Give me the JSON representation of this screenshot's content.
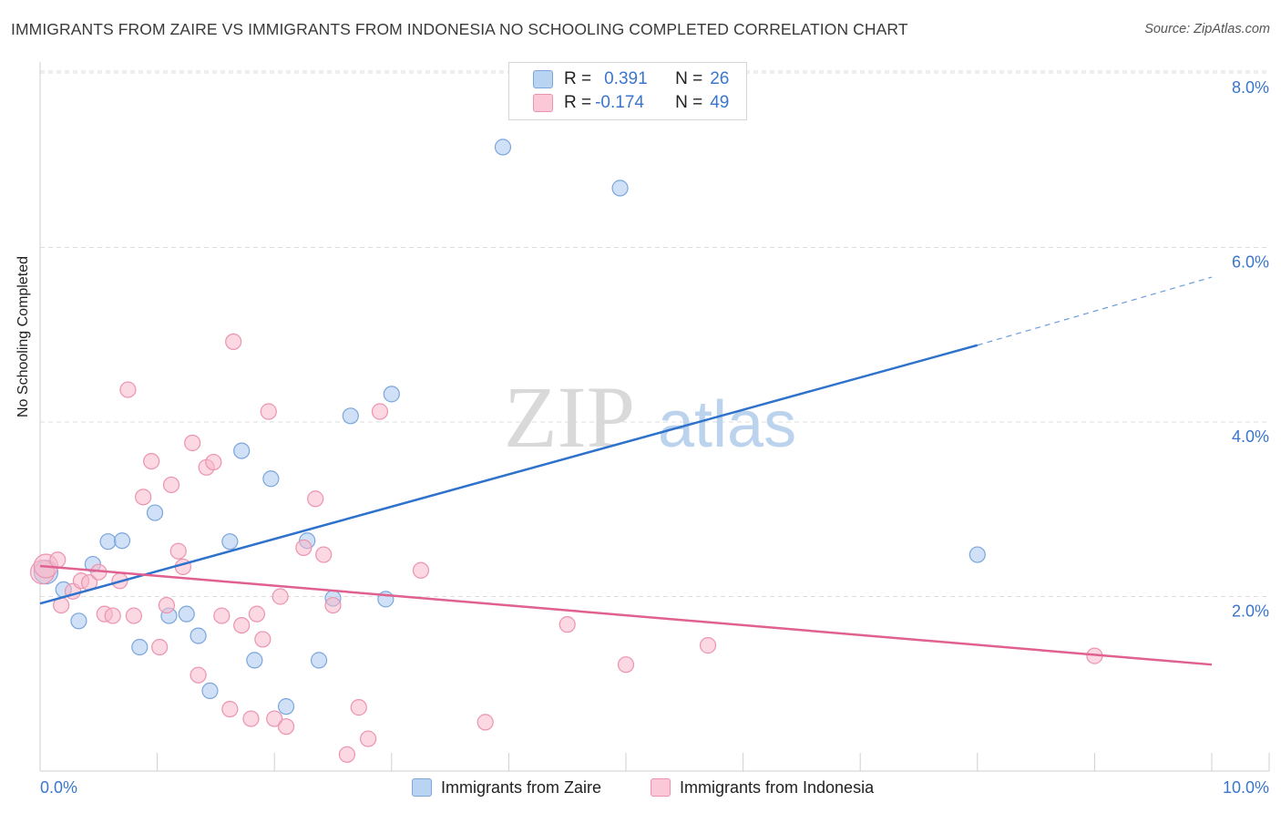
{
  "header": {
    "title": "IMMIGRANTS FROM ZAIRE VS IMMIGRANTS FROM INDONESIA NO SCHOOLING COMPLETED CORRELATION CHART",
    "source": "Source: ZipAtlas.com"
  },
  "legend": {
    "r_label": "R =",
    "n_label": "N =",
    "zaire": {
      "r": "0.391",
      "n": "26"
    },
    "indonesia": {
      "r": "-0.174",
      "n": "49"
    }
  },
  "watermark": {
    "zip": "ZIP",
    "atlas": "atlas"
  },
  "colors": {
    "zaire_fill": "#a9c8f0",
    "zaire_stroke": "#7aa6dc",
    "zaire_line": "#2e72cc",
    "indonesia_fill": "#f7b8cb",
    "indonesia_stroke": "#ec93b0",
    "indonesia_line": "#e0608f",
    "axis_text": "#3a76cc",
    "grid": "#dddddd"
  },
  "chart_data": {
    "type": "scatter",
    "title": "IMMIGRANTS FROM ZAIRE VS IMMIGRANTS FROM INDONESIA NO SCHOOLING COMPLETED CORRELATION CHART",
    "xlabel": "",
    "ylabel": "No Schooling Completed",
    "xlim": [
      0,
      10.5
    ],
    "ylim": [
      0,
      8.3
    ],
    "x_tick_labels": [
      "0.0%",
      "10.0%"
    ],
    "y_ticks": [
      2,
      4,
      6,
      8
    ],
    "y_tick_labels": [
      "2.0%",
      "4.0%",
      "6.0%",
      "8.0%"
    ],
    "series": [
      {
        "name": "Immigrants from Zaire",
        "points": [
          [
            0.05,
            2.28
          ],
          [
            0.2,
            2.08
          ],
          [
            0.33,
            1.72
          ],
          [
            0.45,
            2.37
          ],
          [
            0.58,
            2.63
          ],
          [
            0.7,
            2.64
          ],
          [
            0.85,
            1.42
          ],
          [
            0.98,
            2.96
          ],
          [
            1.1,
            1.78
          ],
          [
            1.25,
            1.8
          ],
          [
            1.35,
            1.55
          ],
          [
            1.45,
            0.92
          ],
          [
            1.62,
            2.63
          ],
          [
            1.72,
            3.67
          ],
          [
            1.83,
            1.27
          ],
          [
            1.97,
            3.35
          ],
          [
            2.1,
            0.74
          ],
          [
            2.28,
            2.64
          ],
          [
            2.38,
            1.27
          ],
          [
            2.5,
            1.98
          ],
          [
            2.65,
            4.07
          ],
          [
            2.95,
            1.97
          ],
          [
            3.0,
            4.32
          ],
          [
            3.95,
            7.15
          ],
          [
            4.95,
            6.68
          ],
          [
            8.0,
            2.48
          ]
        ],
        "trend": {
          "x": [
            0,
            8.0
          ],
          "y": [
            1.92,
            4.88
          ]
        },
        "trend_dashed": {
          "x": [
            8.0,
            10.0
          ],
          "y": [
            4.88,
            5.66
          ]
        }
      },
      {
        "name": "Immigrants from Indonesia",
        "points": [
          [
            0.02,
            2.28
          ],
          [
            0.05,
            2.35
          ],
          [
            0.15,
            2.42
          ],
          [
            0.18,
            1.9
          ],
          [
            0.28,
            2.06
          ],
          [
            0.35,
            2.18
          ],
          [
            0.42,
            2.16
          ],
          [
            0.5,
            2.28
          ],
          [
            0.55,
            1.8
          ],
          [
            0.62,
            1.78
          ],
          [
            0.68,
            2.18
          ],
          [
            0.75,
            4.37
          ],
          [
            0.8,
            1.78
          ],
          [
            0.88,
            3.14
          ],
          [
            0.95,
            3.55
          ],
          [
            1.02,
            1.42
          ],
          [
            1.08,
            1.9
          ],
          [
            1.12,
            3.28
          ],
          [
            1.18,
            2.52
          ],
          [
            1.22,
            2.34
          ],
          [
            1.3,
            3.76
          ],
          [
            1.35,
            1.1
          ],
          [
            1.42,
            3.48
          ],
          [
            1.48,
            3.54
          ],
          [
            1.55,
            1.78
          ],
          [
            1.62,
            0.71
          ],
          [
            1.65,
            4.92
          ],
          [
            1.72,
            1.67
          ],
          [
            1.8,
            0.6
          ],
          [
            1.85,
            1.8
          ],
          [
            1.9,
            1.51
          ],
          [
            1.95,
            4.12
          ],
          [
            2.0,
            0.6
          ],
          [
            2.05,
            2.0
          ],
          [
            2.1,
            0.51
          ],
          [
            2.25,
            2.56
          ],
          [
            2.35,
            3.12
          ],
          [
            2.42,
            2.48
          ],
          [
            2.5,
            1.9
          ],
          [
            2.62,
            0.19
          ],
          [
            2.72,
            0.73
          ],
          [
            2.8,
            0.37
          ],
          [
            2.9,
            4.12
          ],
          [
            3.25,
            2.3
          ],
          [
            3.8,
            0.56
          ],
          [
            4.5,
            1.68
          ],
          [
            5.0,
            1.22
          ],
          [
            5.7,
            1.44
          ],
          [
            9.0,
            1.32
          ]
        ],
        "trend": {
          "x": [
            0,
            10.0
          ],
          "y": [
            2.35,
            1.22
          ]
        }
      }
    ]
  }
}
